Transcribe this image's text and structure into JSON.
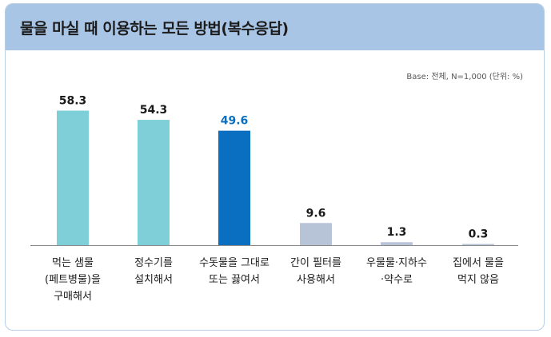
{
  "chart_data": {
    "type": "bar",
    "title": "물을 마실 때 이용하는 모든 방법(복수응답)",
    "note": "Base: 전체, N=1,000 (단위: %)",
    "categories": [
      [
        "먹는 샘물",
        "(페트병물)을",
        "구매해서"
      ],
      [
        "정수기를",
        "설치해서"
      ],
      [
        "수돗물을 그대로",
        "또는 끓여서"
      ],
      [
        "간이 필터를",
        "사용해서"
      ],
      [
        "우물물·지하수",
        "·약수로"
      ],
      [
        "집에서 물을",
        "먹지 않음"
      ]
    ],
    "values": [
      58.3,
      54.3,
      49.6,
      9.6,
      1.3,
      0.3
    ],
    "value_labels": [
      "58.3",
      "54.3",
      "49.6",
      "9.6",
      "1.3",
      "0.3"
    ],
    "colors": {
      "bar_default": "#7fcfd8",
      "bar_highlight": "#0a6fc0",
      "bar_minor": "#b7c4d8",
      "label_highlight": "#0a6fc0",
      "label_default": "#1a1a1a"
    },
    "highlight_index": 2
  }
}
